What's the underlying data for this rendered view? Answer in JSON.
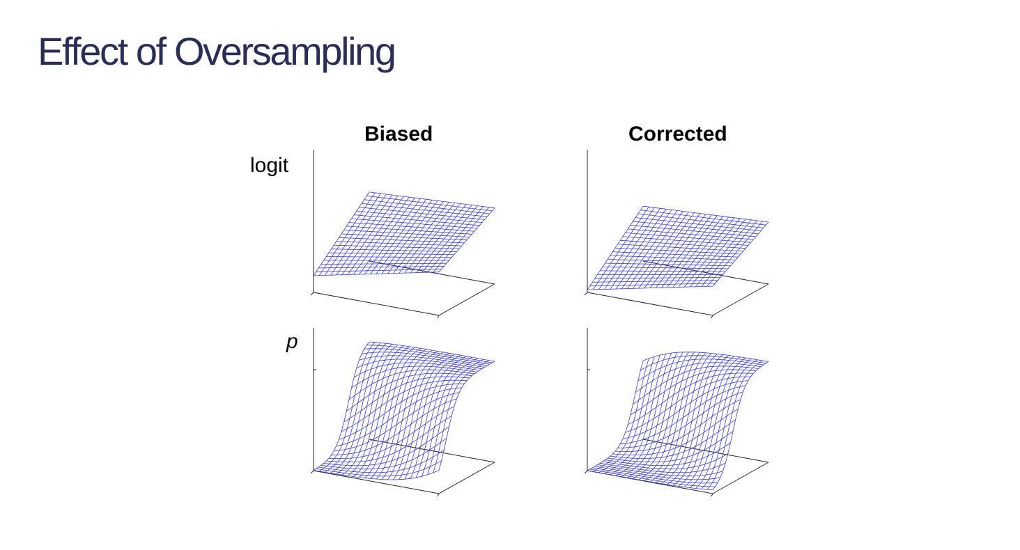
{
  "slide": {
    "title": "Effect of Oversampling"
  },
  "columns": [
    {
      "label": "Biased"
    },
    {
      "label": "Corrected"
    }
  ],
  "rows": [
    {
      "label": "logit"
    },
    {
      "label": "p"
    }
  ],
  "colors": {
    "title": "#2a2d55",
    "mesh": "#3c3cc8",
    "axes": "#222222"
  },
  "surfaces": [
    {
      "name": "biased-logit",
      "kind": "plane",
      "corners": {
        "front_left": 0.19,
        "front_right": 0.49,
        "back_left": 0.78,
        "back_right": 0.86
      }
    },
    {
      "name": "corrected-logit",
      "kind": "plane",
      "corners": {
        "front_left": 0.03,
        "front_right": 0.33,
        "back_left": 0.62,
        "back_right": 0.7
      }
    },
    {
      "name": "biased-p",
      "kind": "logistic",
      "offset": 0.15,
      "scale": 4.5
    },
    {
      "name": "corrected-p",
      "kind": "logistic",
      "offset": -1.9,
      "scale": 4.5
    }
  ]
}
